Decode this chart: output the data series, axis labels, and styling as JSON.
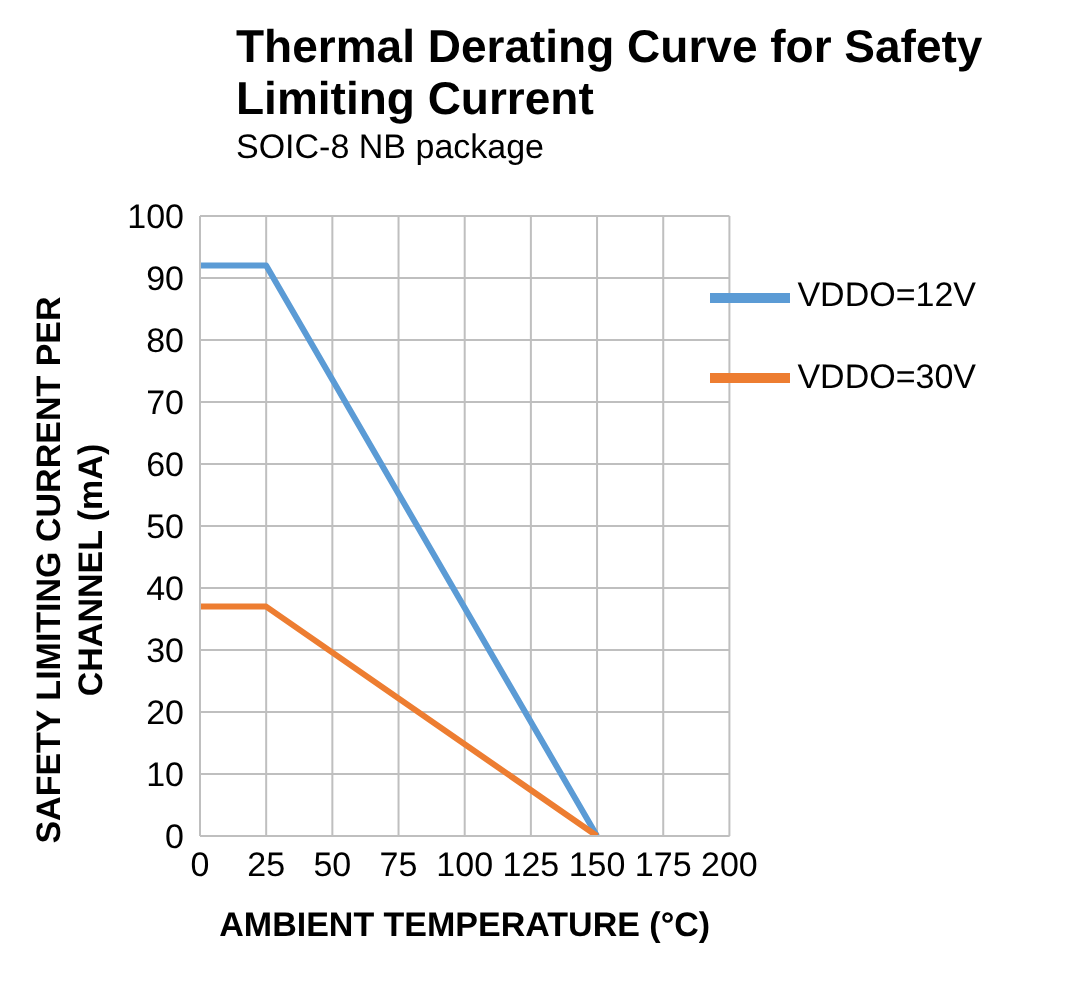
{
  "chart_data": {
    "type": "line",
    "title": "Thermal Derating Curve for Safety Limiting Current",
    "subtitle": "SOIC-8 NB package",
    "xlabel": "AMBIENT TEMPERATURE (°C)",
    "ylabel": "SAFETY LIMITING CURRENT PER CHANNEL (mA)",
    "series": [
      {
        "name": "VDDO=12V",
        "color": "#5b9bd5",
        "x": [
          0,
          25,
          150
        ],
        "values": [
          92,
          92,
          0
        ]
      },
      {
        "name": "VDDO=30V",
        "color": "#ed7d31",
        "x": [
          0,
          25,
          150
        ],
        "values": [
          37,
          37,
          0
        ]
      }
    ],
    "xlim": [
      0,
      200
    ],
    "xticks": [
      0,
      25,
      50,
      75,
      100,
      125,
      150,
      175,
      200
    ],
    "ylim": [
      0,
      100
    ],
    "yticks": [
      0,
      10,
      20,
      30,
      40,
      50,
      60,
      70,
      80,
      90,
      100
    ],
    "grid": true,
    "legend": "top right",
    "marker": "none",
    "line_style": "solid"
  }
}
